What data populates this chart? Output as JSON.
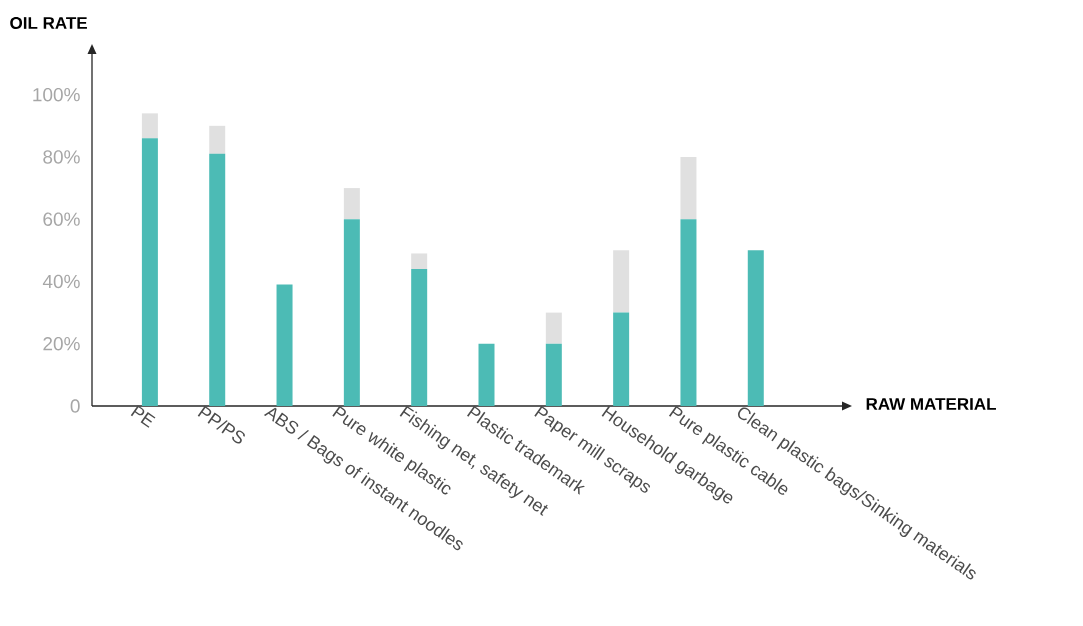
{
  "chart_data": {
    "type": "bar",
    "title": "OIL RATE",
    "xlabel": "RAW MATERIAL",
    "categories": [
      "PE",
      "PP/PS",
      "ABS / Bags of instant noodles",
      "Pure white plastic",
      "Fishing net, safety net",
      "Plastic trademark",
      "Paper mill scraps",
      "Household garbage",
      "Pure plastic cable",
      "Clean plastic bags/Sinking materials"
    ],
    "stacked": true,
    "series": [
      {
        "color": "#4cbbb5",
        "values": [
          86,
          81,
          39,
          60,
          44,
          20,
          20,
          30,
          60,
          50
        ]
      },
      {
        "color": "#e0e0e0",
        "values": [
          8,
          9,
          null,
          10,
          5,
          null,
          10,
          20,
          20,
          null
        ]
      }
    ],
    "ylim": [
      0,
      115
    ],
    "yticks": [
      0,
      {
        "value": 20,
        "label": "20%"
      },
      {
        "value": 40,
        "label": "40%"
      },
      {
        "value": 60,
        "label": "60%"
      },
      {
        "value": 80,
        "label": "80%"
      },
      {
        "value": 100,
        "label": "100%"
      }
    ]
  }
}
